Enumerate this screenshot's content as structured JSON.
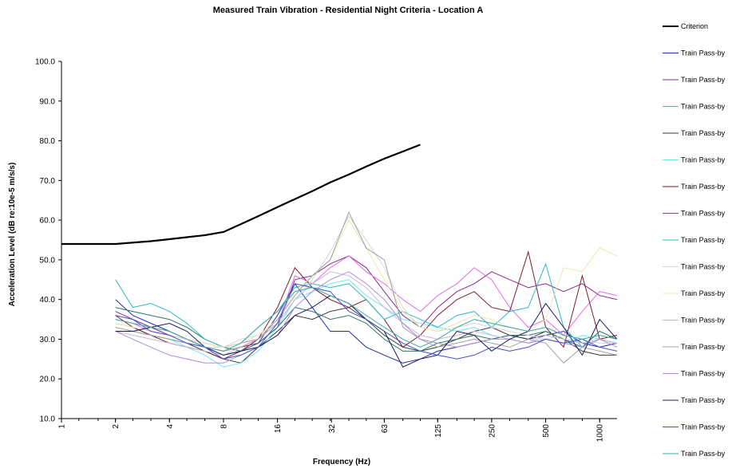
{
  "chart_data": {
    "type": "line",
    "title": "Measured Train Vibration - Residential Night Criteria - Location A",
    "xlabel": "Frequency (Hz)",
    "ylabel": "Acceleration Level (dB re:10e-5 m/s/s)",
    "x_scale": "log2",
    "xlim": [
      1,
      1250
    ],
    "ylim": [
      10,
      100
    ],
    "x_ticks": [
      "1",
      "2",
      "4",
      "8",
      "16",
      "32",
      "63",
      "125",
      "250",
      "500",
      "1000"
    ],
    "y_ticks": [
      "10.0",
      "20.0",
      "30.0",
      "40.0",
      "50.0",
      "60.0",
      "70.0",
      "80.0",
      "90.0",
      "100.0"
    ],
    "grid": false,
    "legend_position": "right",
    "x": [
      2,
      2.5,
      3.15,
      4,
      5,
      6.3,
      8,
      10,
      12.5,
      16,
      20,
      25,
      31.5,
      40,
      50,
      63,
      80,
      100,
      125,
      160,
      200,
      250,
      315,
      400,
      500,
      630,
      800,
      1000,
      1250
    ],
    "criterion": {
      "name": "Criterion",
      "color": "#000000",
      "x": [
        1,
        2,
        3.15,
        4,
        5,
        6.3,
        8,
        10,
        12.5,
        16,
        20,
        25,
        31.5,
        40,
        50,
        63,
        80,
        100
      ],
      "values": [
        54,
        54,
        54.7,
        55.2,
        55.7,
        56.2,
        57,
        59,
        61,
        63.3,
        65.3,
        67.3,
        69.5,
        71.5,
        73.5,
        75.5,
        77.3,
        79
      ]
    },
    "series": [
      {
        "name": "Train Pass-by",
        "color": "#1f2fa8",
        "values": [
          40,
          36,
          34,
          32,
          30,
          28,
          26,
          27,
          29,
          36,
          44,
          38,
          32,
          32,
          28,
          26,
          24,
          25,
          27,
          28,
          29,
          30,
          31,
          30,
          31,
          32,
          29,
          28,
          29
        ]
      },
      {
        "name": "Train Pass-by",
        "color": "#8a2b8a",
        "values": [
          37,
          35,
          33,
          31,
          30,
          28,
          27,
          28,
          29,
          33,
          45,
          46,
          49,
          51,
          48,
          42,
          36,
          33,
          38,
          42,
          44,
          47,
          45,
          43,
          44,
          42,
          44,
          41,
          40
        ]
      },
      {
        "name": "Train Pass-by",
        "color": "#e070e0",
        "values": [
          35,
          34,
          32,
          31,
          30,
          29,
          28,
          29,
          30,
          34,
          46,
          44,
          48,
          51,
          47,
          44,
          40,
          37,
          41,
          44,
          48,
          45,
          38,
          33,
          35,
          31,
          37,
          42,
          41
        ]
      },
      {
        "name": "Train Pass-by",
        "color": "#3a3a3a",
        "values": [
          32,
          32,
          31,
          30,
          29,
          27,
          25,
          24,
          28,
          32,
          36,
          35,
          37,
          38,
          35,
          31,
          28,
          27,
          28,
          30,
          32,
          33,
          31,
          30,
          32,
          30,
          27,
          26,
          26
        ]
      },
      {
        "name": "Train Pass-by",
        "color": "#6ee8f0",
        "values": [
          34,
          33,
          31,
          30,
          28,
          26,
          23,
          24,
          27,
          33,
          40,
          42,
          44,
          45,
          41,
          38,
          35,
          34,
          33,
          32,
          33,
          31,
          30,
          29,
          30,
          29,
          31,
          30,
          29
        ]
      },
      {
        "name": "Train Pass-by",
        "color": "#7a1f2a",
        "values": [
          36,
          33,
          31,
          29,
          28,
          27,
          25,
          27,
          30,
          38,
          48,
          43,
          40,
          38,
          40,
          35,
          28,
          31,
          36,
          40,
          42,
          38,
          37,
          52,
          33,
          28,
          46,
          30,
          31
        ]
      },
      {
        "name": "Train Pass-by",
        "color": "#2a7a6a",
        "values": [
          38,
          37,
          36,
          35,
          33,
          30,
          28,
          27,
          29,
          33,
          38,
          37,
          35,
          36,
          34,
          30,
          27,
          27,
          29,
          30,
          31,
          30,
          31,
          31,
          32,
          30,
          28,
          32,
          30
        ]
      },
      {
        "name": "Train Pass-by",
        "color": "#30b8c0",
        "values": [
          45,
          38,
          39,
          37,
          34,
          30,
          28,
          29,
          33,
          37,
          43,
          44,
          43,
          44,
          40,
          35,
          37,
          35,
          33,
          36,
          37,
          33,
          37,
          38,
          49,
          33,
          28,
          30,
          29
        ]
      },
      {
        "name": "Train Pass-by",
        "color": "#d6d6d6",
        "values": [
          33,
          32,
          31,
          30,
          29,
          28,
          28,
          30,
          31,
          34,
          40,
          45,
          52,
          61,
          55,
          48,
          38,
          33,
          32,
          33,
          34,
          33,
          32,
          31,
          30,
          31,
          30,
          29,
          29
        ]
      },
      {
        "name": "Train Pass-by",
        "color": "#e8e8b0",
        "values": [
          34,
          33,
          32,
          31,
          30,
          29,
          28,
          29,
          31,
          35,
          42,
          46,
          50,
          60,
          53,
          45,
          37,
          33,
          32,
          34,
          36,
          35,
          33,
          32,
          35,
          48,
          47,
          53,
          51
        ]
      },
      {
        "name": "Train Pass-by",
        "color": "#c8b8d8",
        "values": [
          32,
          31,
          30,
          29,
          28,
          27,
          26,
          28,
          30,
          34,
          40,
          44,
          47,
          46,
          43,
          38,
          34,
          31,
          30,
          31,
          32,
          31,
          30,
          29,
          31,
          30,
          29,
          30,
          29
        ]
      },
      {
        "name": "Train Pass-by",
        "color": "#a0a0a0",
        "values": [
          33,
          32,
          31,
          30,
          29,
          28,
          27,
          28,
          30,
          35,
          41,
          46,
          50,
          62,
          53,
          50,
          33,
          30,
          28,
          29,
          30,
          29,
          28,
          30,
          29,
          24,
          28,
          27,
          26
        ]
      },
      {
        "name": "Train Pass-by",
        "color": "#b090d8",
        "values": [
          32,
          30,
          28,
          26,
          25,
          24,
          24,
          26,
          28,
          31,
          38,
          42,
          45,
          47,
          44,
          40,
          34,
          30,
          29,
          28,
          29,
          30,
          30,
          29,
          30,
          29,
          28,
          30,
          28
        ]
      },
      {
        "name": "Train Pass-by",
        "color": "#1a1a5a",
        "values": [
          32,
          32,
          33,
          34,
          32,
          28,
          26,
          27,
          28,
          31,
          36,
          38,
          41,
          39,
          35,
          32,
          23,
          25,
          26,
          32,
          31,
          27,
          30,
          32,
          39,
          33,
          26,
          35,
          30
        ]
      },
      {
        "name": "Train Pass-by",
        "color": "#4050d0",
        "values": [
          36,
          35,
          32,
          31,
          29,
          28,
          25,
          26,
          28,
          34,
          44,
          43,
          42,
          37,
          35,
          32,
          29,
          27,
          26,
          25,
          26,
          28,
          27,
          28,
          30,
          29,
          30,
          28,
          27
        ]
      },
      {
        "name": "Train Pass-by",
        "color": "#40a8a0",
        "values": [
          35,
          34,
          33,
          32,
          30,
          28,
          27,
          29,
          33,
          37,
          42,
          43,
          41,
          39,
          36,
          33,
          30,
          28,
          30,
          33,
          35,
          34,
          33,
          32,
          33,
          31,
          30,
          31,
          30
        ]
      }
    ]
  }
}
